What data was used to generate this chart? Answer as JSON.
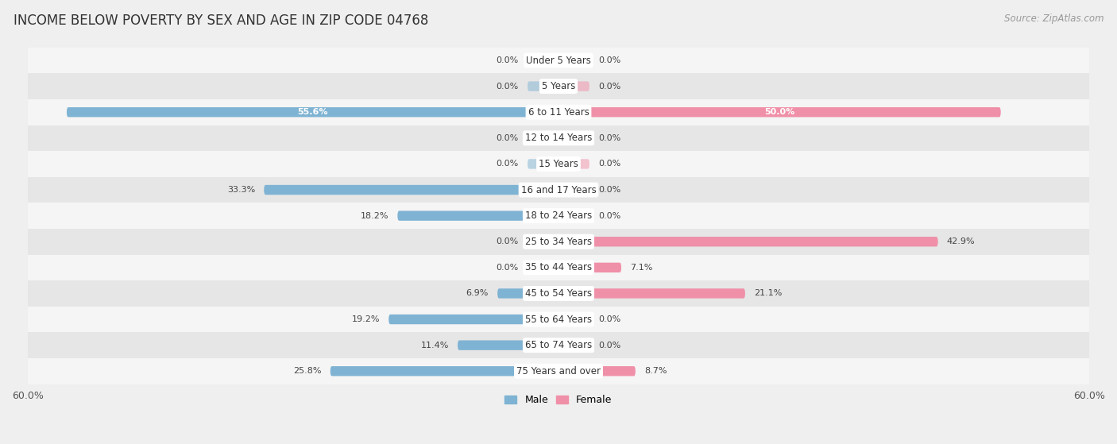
{
  "title": "INCOME BELOW POVERTY BY SEX AND AGE IN ZIP CODE 04768",
  "source": "Source: ZipAtlas.com",
  "categories": [
    "Under 5 Years",
    "5 Years",
    "6 to 11 Years",
    "12 to 14 Years",
    "15 Years",
    "16 and 17 Years",
    "18 to 24 Years",
    "25 to 34 Years",
    "35 to 44 Years",
    "45 to 54 Years",
    "55 to 64 Years",
    "65 to 74 Years",
    "75 Years and over"
  ],
  "male": [
    0.0,
    0.0,
    55.6,
    0.0,
    0.0,
    33.3,
    18.2,
    0.0,
    0.0,
    6.9,
    19.2,
    11.4,
    25.8
  ],
  "female": [
    0.0,
    0.0,
    50.0,
    0.0,
    0.0,
    0.0,
    0.0,
    42.9,
    7.1,
    21.1,
    0.0,
    0.0,
    8.7
  ],
  "male_color": "#7fb3d3",
  "female_color": "#f090a8",
  "male_label": "Male",
  "female_label": "Female",
  "xlim": 60.0,
  "bar_height": 0.38,
  "background_color": "#efefef",
  "row_bg_light": "#f5f5f5",
  "row_bg_dark": "#e6e6e6",
  "title_fontsize": 12,
  "source_fontsize": 8.5,
  "label_fontsize": 8.0,
  "category_fontsize": 8.5,
  "axis_label_fontsize": 9
}
